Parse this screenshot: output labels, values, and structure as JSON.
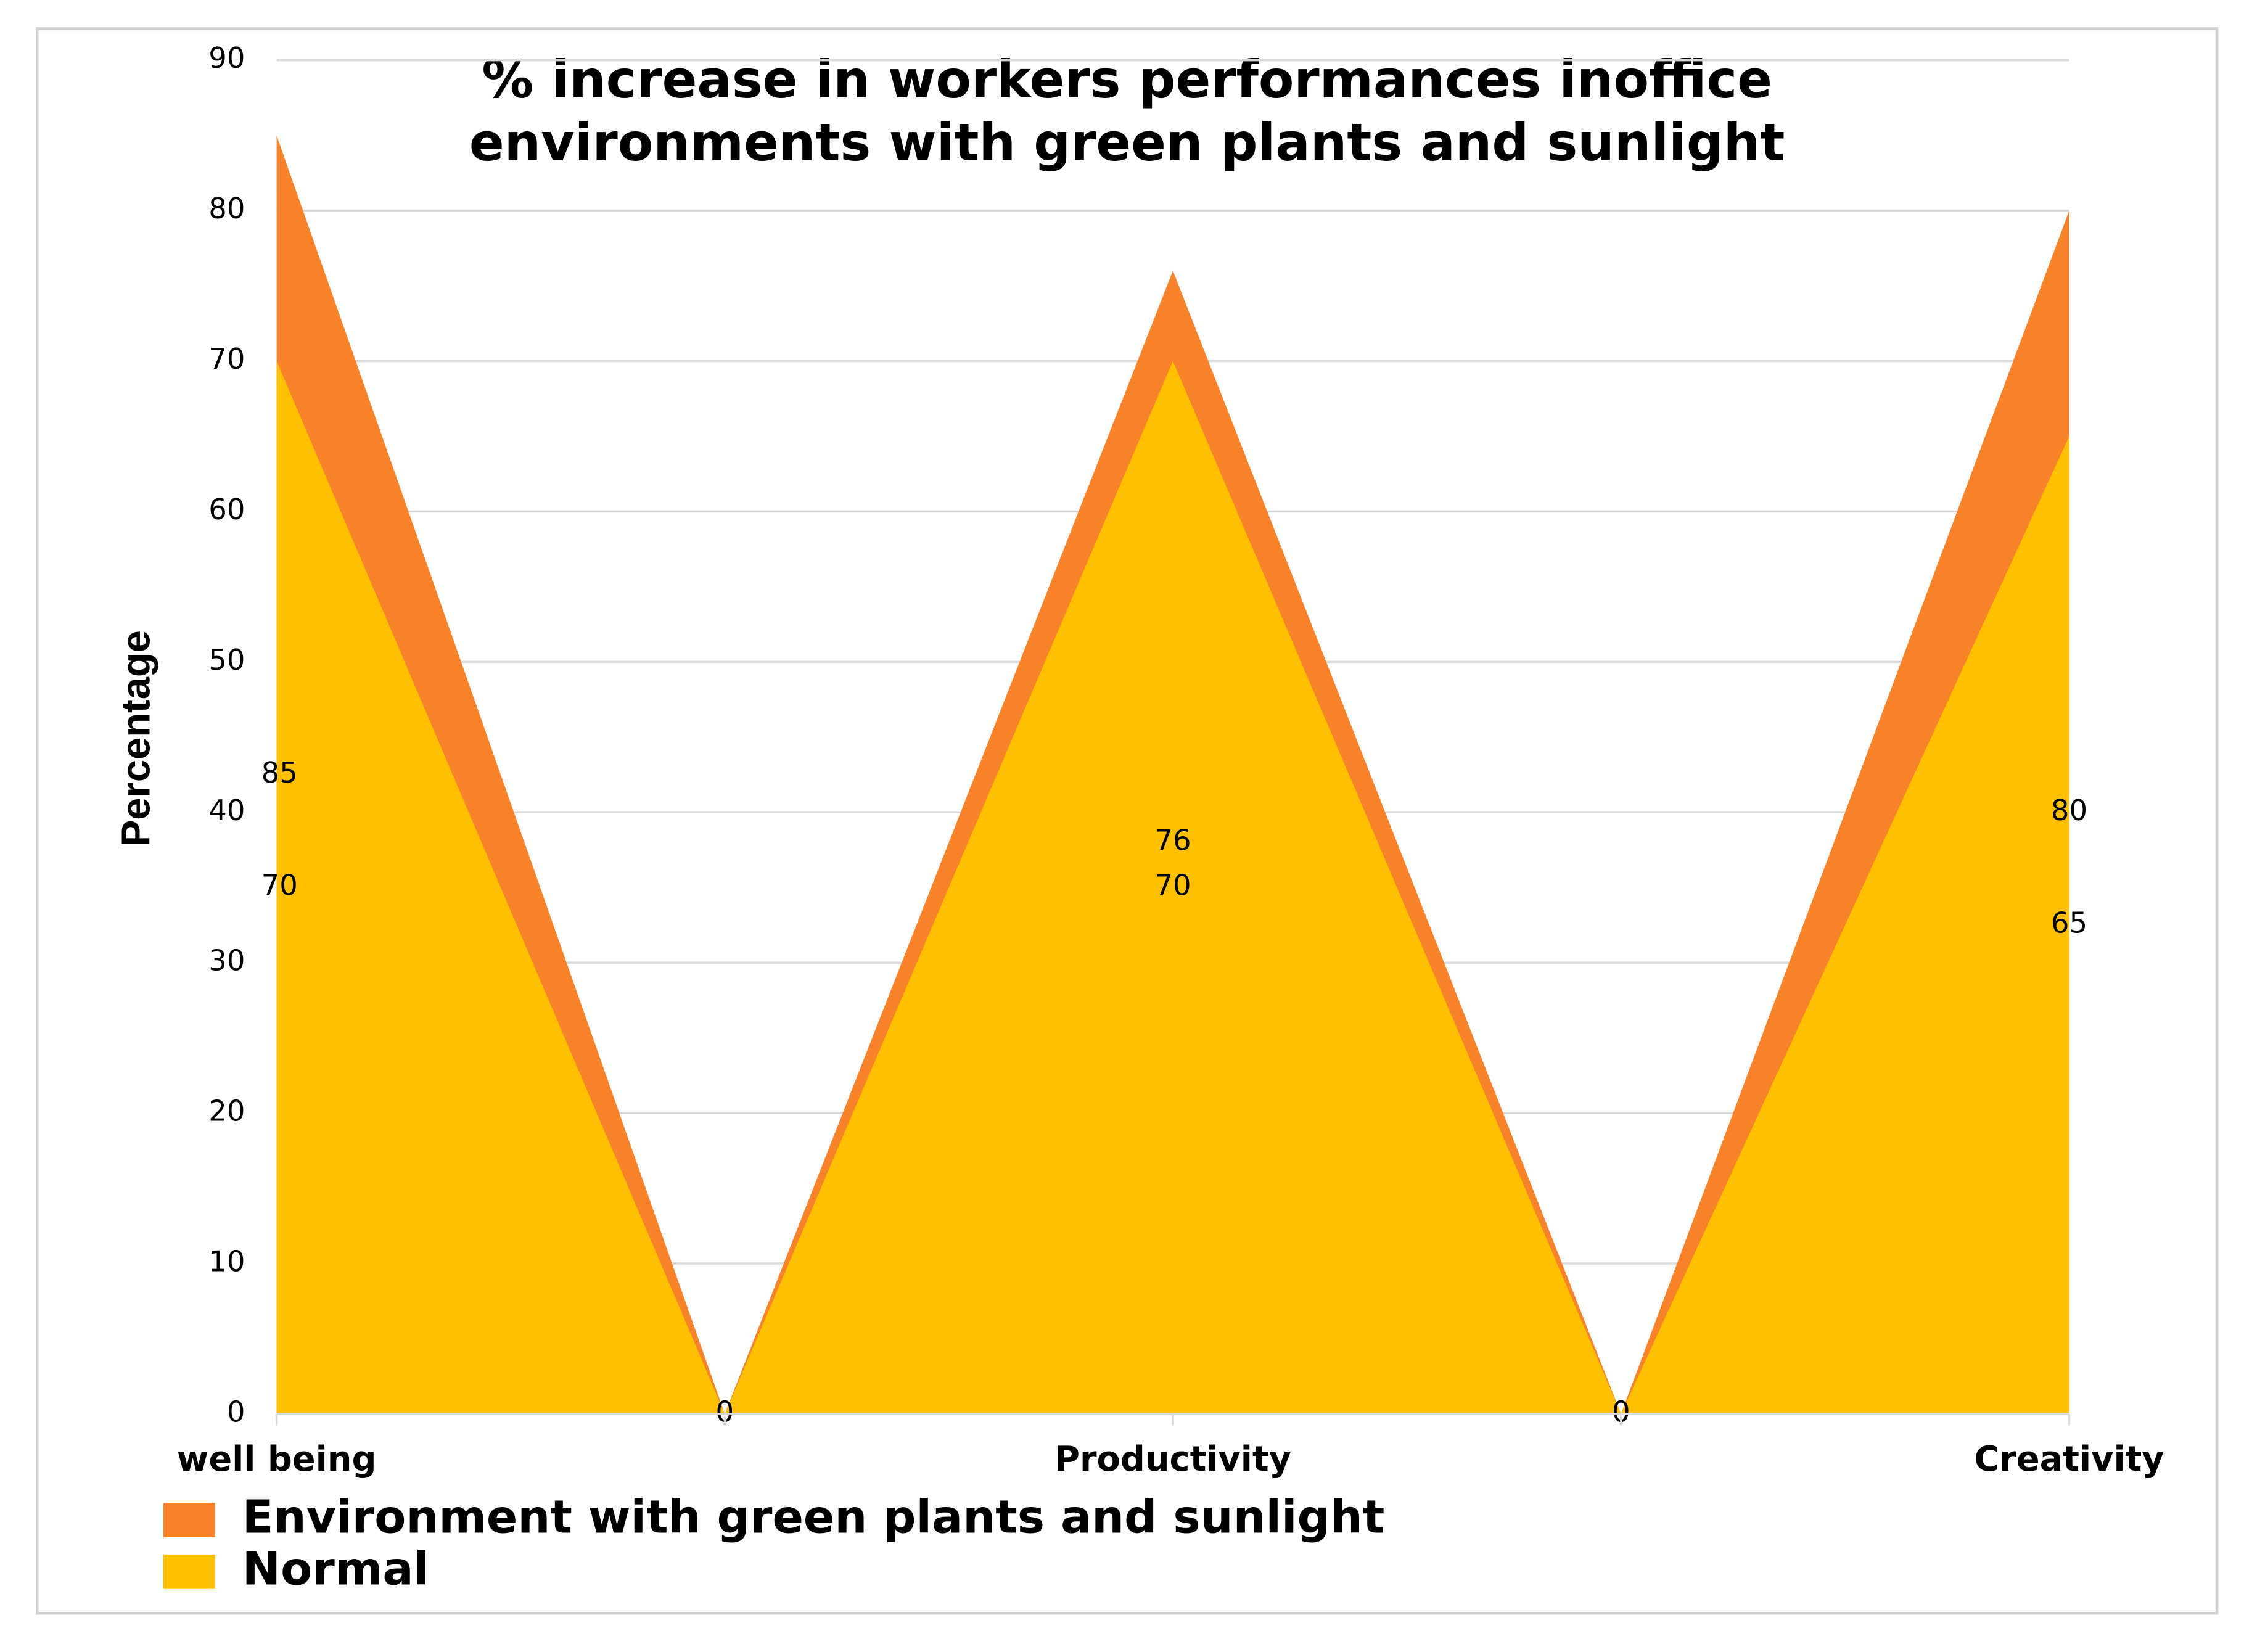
{
  "chart_data": {
    "type": "area",
    "title": [
      "% increase in workers performances inoffice",
      "environments with green plants and sunlight"
    ],
    "y_label": "Percentage",
    "categories": [
      "well being",
      null,
      "Productivity",
      null,
      "Creativity"
    ],
    "series": [
      {
        "name": "Environment with green plants and sunlight",
        "color": "#F8822A",
        "values": [
          85,
          0,
          76,
          0,
          80
        ]
      },
      {
        "name": "Normal",
        "color": "#FFC000",
        "values": [
          70,
          0,
          70,
          0,
          65
        ]
      }
    ],
    "ylim": [
      0,
      90
    ],
    "yticks": [
      0,
      10,
      20,
      30,
      40,
      50,
      60,
      70,
      80,
      90
    ],
    "grid": true,
    "legend": "bottom"
  }
}
